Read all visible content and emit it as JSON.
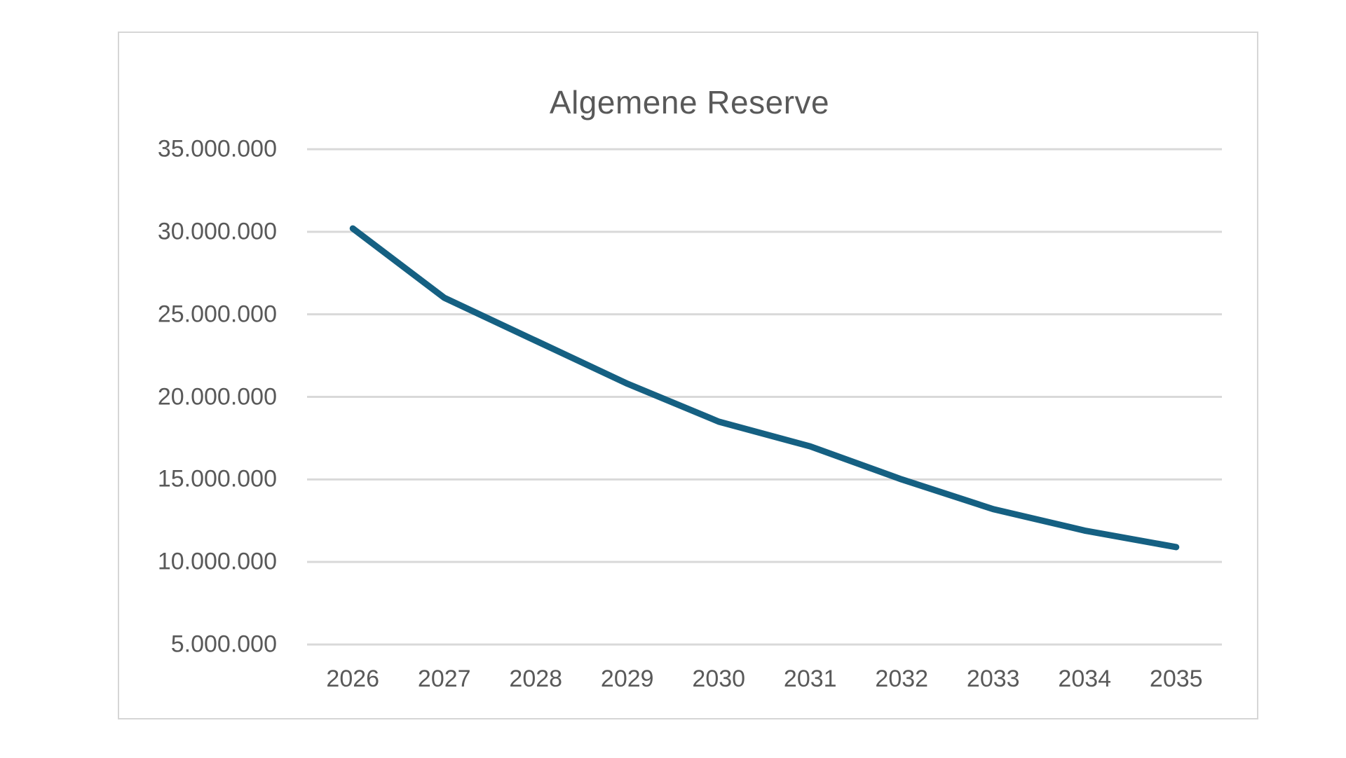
{
  "chart": {
    "title": "Algemene Reserve",
    "colors": {
      "line": "#156082",
      "label_text": "#595959",
      "gridline": "#d9d9d9",
      "frame_border": "#d6d6d6",
      "background": "#ffffff"
    }
  },
  "chart_data": {
    "type": "line",
    "title": "Algemene Reserve",
    "categories": [
      "2026",
      "2027",
      "2028",
      "2029",
      "2030",
      "2031",
      "2032",
      "2033",
      "2034",
      "2035"
    ],
    "series": [
      {
        "name": "Algemene Reserve",
        "values": [
          30200000,
          26000000,
          23400000,
          20800000,
          18500000,
          17000000,
          15000000,
          13200000,
          11900000,
          10900000
        ]
      }
    ],
    "xlabel": "",
    "ylabel": "",
    "ylim": [
      5000000,
      35000000
    ],
    "y_ticks": [
      {
        "label": "35.000.000",
        "value": 35000000
      },
      {
        "label": "30.000.000",
        "value": 30000000
      },
      {
        "label": "25.000.000",
        "value": 25000000
      },
      {
        "label": "20.000.000",
        "value": 20000000
      },
      {
        "label": "15.000.000",
        "value": 15000000
      },
      {
        "label": "10.000.000",
        "value": 10000000
      },
      {
        "label": "5.000.000",
        "value": 5000000
      }
    ],
    "grid": "horizontal",
    "legend": "none"
  }
}
